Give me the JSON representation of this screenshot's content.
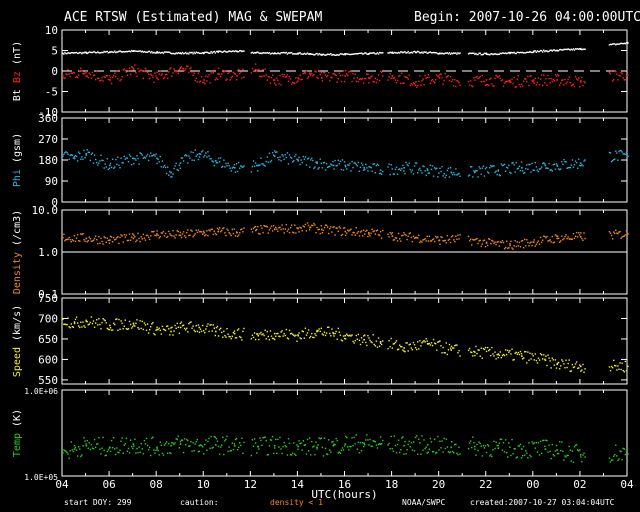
{
  "title": "ACE RTSW (Estimated) MAG & SWEPAM",
  "begin_label": "Begin: 2007-10-26 04:00:00UTC",
  "footer": {
    "start_doy": "start DOY: 299",
    "caution": "caution:",
    "density_note": "density < 1",
    "source": "NOAA/SWPC",
    "created": "created:2007-10-27 03:04:04UTC"
  },
  "colors": {
    "bt": "#ffffff",
    "bz": "#ff2020",
    "phi": "#27b6e0",
    "density": "#f08a20",
    "speed": "#f0ef30",
    "temp": "#28d02a",
    "density_note": "#f08a20"
  },
  "chart_data": {
    "type": "scatter",
    "xlabel": "UTC(hours)",
    "x_ticks": [
      "04",
      "06",
      "08",
      "10",
      "12",
      "14",
      "16",
      "18",
      "20",
      "22",
      "00",
      "02",
      "04"
    ],
    "x_range_hours": [
      0,
      24
    ],
    "data_gaps_hours": [
      [
        7.7,
        8.0
      ],
      [
        13.6,
        13.8
      ],
      [
        16.9,
        17.2
      ],
      [
        22.2,
        23.2
      ]
    ],
    "panels": [
      {
        "id": "mag",
        "ylabel_parts": [
          "Bt",
          "Bz",
          "(nT)"
        ],
        "ylabel_colors": [
          "#ffffff",
          "#ff2020",
          "#ffffff"
        ],
        "ylim": [
          -10,
          10
        ],
        "y_ticks": [
          "10",
          "5",
          "0",
          "-5",
          "-10"
        ],
        "y_tick_values": [
          10,
          5,
          0,
          -5,
          -10
        ],
        "ref_line_dashed": 0,
        "series": [
          {
            "name": "Bt",
            "color": "#ffffff",
            "x": [
              0,
              1,
              2,
              3,
              4,
              5,
              6,
              6.6,
              7.4,
              8.2,
              9,
              10,
              10.5,
              11,
              12,
              13,
              14,
              15,
              16,
              17,
              18,
              19,
              20,
              21,
              22,
              23.2,
              24
            ],
            "y": [
              4.5,
              4.6,
              4.8,
              5,
              4.7,
              4.5,
              4.6,
              4.8,
              5,
              4.6,
              4.5,
              4.5,
              4.3,
              4.2,
              4.2,
              4.4,
              4.6,
              4.8,
              4.5,
              4.4,
              4.3,
              4.5,
              4.9,
              5.2,
              5.5,
              6.5,
              7
            ]
          },
          {
            "name": "Bz",
            "color": "#ff2020",
            "x": [
              0,
              1,
              2,
              3,
              4,
              5,
              6,
              6.6,
              7.4,
              8.2,
              9,
              10,
              10.5,
              11,
              12,
              13,
              14,
              15,
              16,
              17,
              18,
              19,
              20,
              21,
              22,
              23.2,
              24
            ],
            "y": [
              -1,
              0,
              -2,
              0.5,
              -1.5,
              1,
              -2,
              -0.5,
              -1,
              0.5,
              -2,
              -1.5,
              -0.5,
              -1.5,
              -1,
              -1.5,
              -1,
              -2.5,
              -1.5,
              -2.5,
              -2,
              -2.5,
              -2,
              -2,
              -2.5,
              -1,
              -0.8
            ]
          }
        ]
      },
      {
        "id": "phi",
        "ylabel_parts": [
          "Phi",
          "(gsm)"
        ],
        "ylabel_colors": [
          "#27b6e0",
          "#ffffff"
        ],
        "ylim": [
          0,
          360
        ],
        "y_ticks": [
          "360",
          "270",
          "180",
          "90",
          "0"
        ],
        "y_tick_values": [
          360,
          270,
          180,
          90,
          0
        ],
        "series": [
          {
            "name": "Phi",
            "color": "#27b6e0",
            "x": [
              0,
              0.5,
              1,
              2,
              3,
              4,
              4.6,
              5,
              5.8,
              6.5,
              7.3,
              8.3,
              9,
              10,
              10.8,
              11.5,
              12,
              12.8,
              13.5,
              14.5,
              15.5,
              16.5,
              17.5,
              18.5,
              19.5,
              20.5,
              21,
              22,
              23.2,
              24
            ],
            "y": [
              200,
              190,
              210,
              160,
              190,
              190,
              130,
              170,
              210,
              180,
              150,
              160,
              200,
              180,
              170,
              160,
              160,
              150,
              140,
              150,
              140,
              130,
              130,
              140,
              150,
              160,
              160,
              170,
              200,
              200
            ]
          }
        ]
      },
      {
        "id": "density",
        "ylabel_parts": [
          "Density",
          "(/cm3)"
        ],
        "ylabel_colors": [
          "#f08a20",
          "#ffffff"
        ],
        "ylim": [
          0.1,
          10
        ],
        "log": true,
        "y_ticks": [
          "10.0",
          "1.0",
          "0.1"
        ],
        "y_tick_values": [
          10,
          1,
          0.1
        ],
        "ref_line_solid": 1,
        "series": [
          {
            "name": "Density",
            "color": "#f08a20",
            "x": [
              0,
              1,
              2,
              3,
              4,
              5,
              6,
              6.6,
              7.4,
              8.2,
              9,
              10,
              10.5,
              11,
              12,
              13,
              14,
              15,
              16,
              17,
              18,
              19,
              20,
              21,
              22,
              23.2,
              24
            ],
            "y": [
              2.3,
              2.2,
              2.0,
              2.2,
              2.8,
              2.6,
              3.0,
              3.2,
              3.0,
              3.4,
              3.6,
              3.8,
              4.0,
              3.6,
              3.2,
              3.0,
              2.5,
              2.3,
              2.0,
              2.1,
              1.7,
              1.5,
              1.8,
              2.2,
              2.4,
              2.6,
              2.8
            ]
          }
        ]
      },
      {
        "id": "speed",
        "ylabel_parts": [
          "Speed",
          "(km/s)"
        ],
        "ylabel_colors": [
          "#f0ef30",
          "#ffffff"
        ],
        "ylim": [
          540,
          750
        ],
        "y_ticks": [
          "750",
          "700",
          "650",
          "600",
          "550"
        ],
        "y_tick_values": [
          750,
          700,
          650,
          600,
          550
        ],
        "series": [
          {
            "name": "Speed",
            "color": "#f0ef30",
            "x": [
              0,
              0.5,
              1,
              2,
              3,
              4,
              4.6,
              5,
              5.8,
              6.5,
              7.3,
              8.3,
              9,
              10,
              10.8,
              11.5,
              12,
              12.8,
              13.5,
              14.5,
              15.5,
              16.5,
              17.5,
              18.5,
              19.5,
              20.5,
              21,
              22,
              23.2,
              24
            ],
            "y": [
              700,
              690,
              695,
              685,
              690,
              675,
              670,
              680,
              680,
              670,
              665,
              660,
              665,
              660,
              670,
              665,
              660,
              650,
              645,
              630,
              640,
              625,
              620,
              615,
              610,
              600,
              590,
              585,
              585,
              585
            ]
          }
        ]
      },
      {
        "id": "temp",
        "ylabel_parts": [
          "Temp",
          "(K)"
        ],
        "ylabel_colors": [
          "#28d02a",
          "#ffffff"
        ],
        "ylim": [
          100000,
          1000000
        ],
        "log": true,
        "y_ticks": [
          "1.0E+06",
          "1.0E+05"
        ],
        "y_tick_values": [
          1000000,
          100000
        ],
        "series": [
          {
            "name": "Temp",
            "color": "#28d02a",
            "x": [
              0,
              0.5,
              1,
              2,
              3,
              4,
              4.6,
              5,
              5.8,
              6.5,
              7.3,
              8.3,
              9,
              10,
              10.8,
              11.5,
              12,
              12.8,
              13.5,
              14.5,
              15.5,
              16.5,
              17.5,
              18.5,
              19.5,
              20.5,
              21,
              22,
              23.2,
              24
            ],
            "y": [
              190000,
              210000,
              230000,
              220000,
              240000,
              220000,
              230000,
              240000,
              230000,
              235000,
              230000,
              225000,
              230000,
              225000,
              220000,
              230000,
              240000,
              245000,
              240000,
              230000,
              235000,
              220000,
              225000,
              215000,
              210000,
              210000,
              205000,
              180000,
              190000,
              185000
            ]
          }
        ]
      }
    ]
  }
}
